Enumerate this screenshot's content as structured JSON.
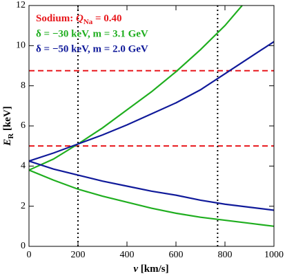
{
  "chart_data": {
    "type": "line",
    "annotation_parts": [
      "Sodium: ",
      "Q",
      "Na",
      " = 0.40"
    ],
    "hlines": {
      "color": "#e8161b",
      "values": [
        5,
        8.75
      ]
    },
    "vlines": {
      "color": "#000000",
      "values": [
        200,
        770
      ]
    },
    "series": [
      {
        "name": "δ = −30 keV, m = 3.1 GeV",
        "color": "#1fae1f",
        "x": [
          0,
          100,
          200,
          300,
          400,
          500,
          600,
          700,
          800,
          870
        ],
        "values": [
          3.8,
          4.35,
          5.1,
          5.9,
          6.8,
          7.7,
          8.7,
          9.8,
          11.0,
          12
        ]
      },
      {
        "name": "δ = −50 keV, m = 2.0 GeV",
        "color": "#101a9a",
        "x": [
          0,
          100,
          200,
          300,
          400,
          500,
          600,
          700,
          800,
          900,
          1000
        ],
        "values": [
          4.25,
          4.65,
          5.1,
          5.55,
          6.05,
          6.6,
          7.15,
          7.8,
          8.6,
          9.4,
          10.2
        ]
      },
      {
        "color": "#1fae1f",
        "x": [
          0,
          100,
          200,
          300,
          400,
          500,
          600,
          700,
          800,
          900,
          1000
        ],
        "values": [
          3.8,
          3.3,
          2.85,
          2.5,
          2.2,
          1.9,
          1.65,
          1.45,
          1.3,
          1.15,
          1.0
        ]
      },
      {
        "color": "#101a9a",
        "x": [
          0,
          100,
          200,
          300,
          400,
          500,
          600,
          700,
          800,
          900,
          1000
        ],
        "values": [
          4.25,
          3.85,
          3.55,
          3.25,
          3.0,
          2.75,
          2.55,
          2.3,
          2.1,
          1.95,
          1.8
        ]
      }
    ],
    "xlabel_parts": [
      "v",
      " [km/s]"
    ],
    "ylabel_parts": [
      "E",
      "R",
      " [keV]"
    ],
    "xlim": [
      0,
      1000
    ],
    "xticks": [
      0,
      200,
      400,
      600,
      800,
      1000
    ],
    "ylim": [
      0,
      12
    ],
    "yticks": [
      0,
      2,
      4,
      6,
      8,
      10,
      12
    ]
  }
}
